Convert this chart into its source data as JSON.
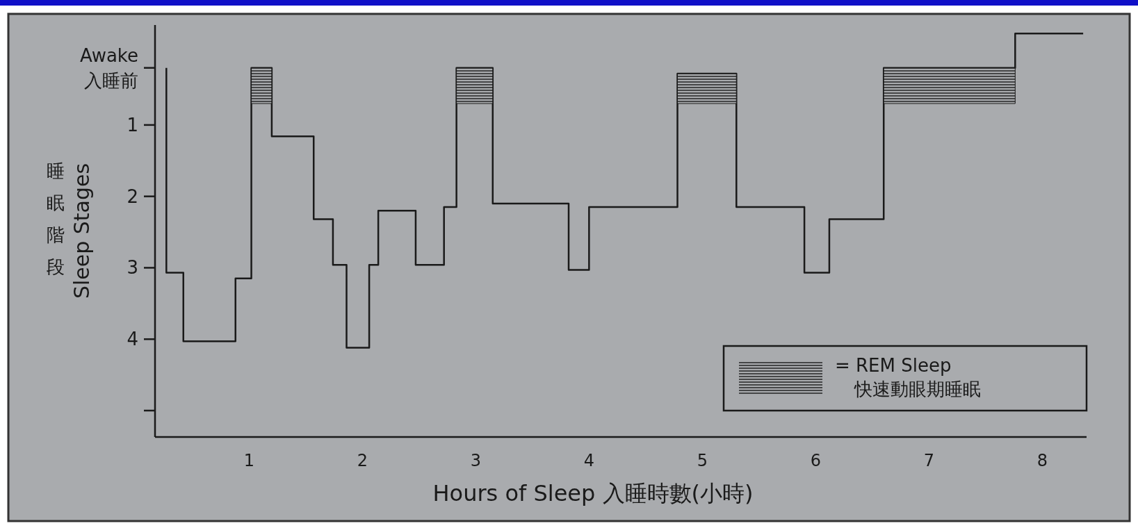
{
  "chart_data": {
    "type": "step",
    "xlabel": "Hours of Sleep  入睡時數(小時)",
    "ylabel": "Sleep Stages",
    "annotations": [
      "睡眠階段"
    ],
    "xlim": [
      0.17,
      8.39
    ],
    "ylim": [
      5.37,
      -0.4
    ],
    "xticks": [
      1,
      2,
      3,
      4,
      5,
      6,
      7,
      8
    ],
    "yticks": [
      {
        "value": 0.2,
        "label": "Awake\n入睡前"
      },
      1,
      2,
      3,
      4,
      {
        "value": 5,
        "label": null
      }
    ],
    "legend": "bottom right",
    "series": [
      {
        "color": "#1a1a1a",
        "x": [
          0.27,
          0.27,
          0.42,
          0.88,
          1.02,
          1.2,
          1.57,
          1.74,
          1.86,
          2.06,
          2.14,
          2.47,
          2.72,
          2.83,
          3.15,
          3.82,
          4.0,
          4.78,
          5.3,
          5.9,
          6.12,
          6.6,
          7.76,
          8.36
        ],
        "values": [
          0.2,
          3.07,
          4.03,
          3.15,
          0.2,
          1.16,
          2.32,
          2.96,
          4.12,
          2.96,
          2.2,
          2.96,
          2.15,
          0.2,
          2.1,
          3.03,
          2.15,
          0.28,
          2.15,
          3.07,
          2.32,
          0.2,
          -0.28,
          -0.28
        ]
      },
      {
        "type": "area",
        "name": "= REM Sleep\n快速動眼期睡眠",
        "color": "#1a1a1a",
        "x": [
          1.02,
          1.2,
          null,
          2.83,
          3.15,
          null,
          4.78,
          5.3,
          null,
          6.6,
          7.76
        ],
        "values": [
          0.7,
          0.7,
          null,
          0.7,
          0.7,
          null,
          0.7,
          0.7,
          null,
          0.7,
          0.7
        ]
      }
    ]
  }
}
